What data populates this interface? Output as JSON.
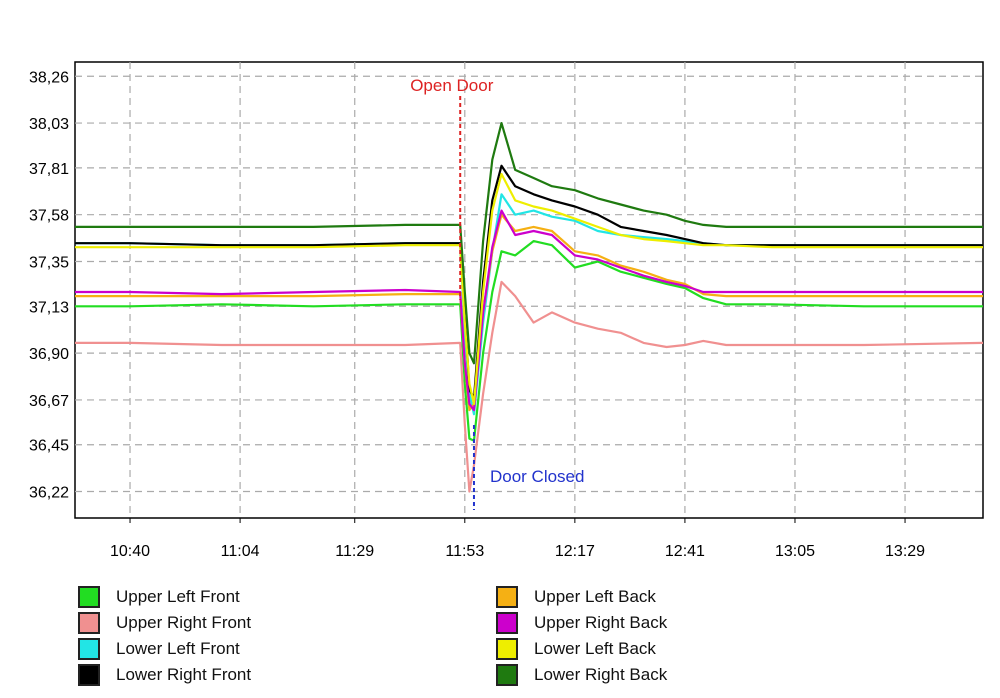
{
  "chart_data": {
    "type": "line",
    "title": "",
    "xlabel": "",
    "ylabel": "",
    "grid": true,
    "legend_position": "bottom",
    "x_ticks": [
      "10:40",
      "11:04",
      "11:29",
      "11:53",
      "12:17",
      "12:41",
      "13:05",
      "13:29"
    ],
    "y_ticks": [
      "38,26",
      "38,03",
      "37,81",
      "37,58",
      "37,35",
      "37,13",
      "36,90",
      "36,67",
      "36,45",
      "36,22"
    ],
    "y_tick_values": [
      38.26,
      38.03,
      37.81,
      37.58,
      37.35,
      37.13,
      36.9,
      36.67,
      36.45,
      36.22
    ],
    "xlim": [
      "10:28",
      "13:46"
    ],
    "ylim": [
      36.09,
      38.33
    ],
    "x": [
      "10:28",
      "10:40",
      "11:00",
      "11:20",
      "11:40",
      "11:52",
      "11:53",
      "11:54",
      "11:55",
      "11:57",
      "11:59",
      "12:01",
      "12:04",
      "12:08",
      "12:12",
      "12:17",
      "12:22",
      "12:27",
      "12:32",
      "12:37",
      "12:41",
      "12:45",
      "12:50",
      "13:00",
      "13:20",
      "13:46"
    ],
    "series": [
      {
        "name": "Upper Left Front",
        "color": "#22dd22",
        "values": [
          37.13,
          37.13,
          37.14,
          37.13,
          37.14,
          37.14,
          36.75,
          36.48,
          36.47,
          36.9,
          37.2,
          37.4,
          37.38,
          37.45,
          37.43,
          37.32,
          37.35,
          37.3,
          37.27,
          37.24,
          37.22,
          37.17,
          37.14,
          37.14,
          37.13,
          37.13
        ]
      },
      {
        "name": "Upper Right Front",
        "color": "#f09090",
        "values": [
          36.95,
          36.95,
          36.94,
          36.94,
          36.94,
          36.95,
          36.55,
          36.22,
          36.35,
          36.7,
          37.0,
          37.25,
          37.18,
          37.05,
          37.1,
          37.05,
          37.02,
          37.0,
          36.95,
          36.93,
          36.94,
          36.96,
          36.94,
          36.94,
          36.94,
          36.95
        ]
      },
      {
        "name": "Lower Left Front",
        "color": "#22e5e5",
        "values": [
          37.44,
          37.44,
          37.43,
          37.43,
          37.44,
          37.44,
          37.0,
          36.7,
          36.6,
          37.05,
          37.4,
          37.68,
          37.58,
          37.6,
          37.57,
          37.55,
          37.5,
          37.48,
          37.47,
          37.46,
          37.45,
          37.44,
          37.43,
          37.43,
          37.43,
          37.43
        ]
      },
      {
        "name": "Lower Right Front",
        "color": "#000000",
        "values": [
          37.44,
          37.44,
          37.43,
          37.43,
          37.44,
          37.44,
          37.1,
          36.72,
          36.68,
          37.25,
          37.65,
          37.82,
          37.72,
          37.68,
          37.65,
          37.62,
          37.58,
          37.52,
          37.5,
          37.48,
          37.46,
          37.44,
          37.43,
          37.43,
          37.43,
          37.43
        ]
      },
      {
        "name": "Upper Left Back",
        "color": "#f5b014",
        "values": [
          37.18,
          37.18,
          37.18,
          37.18,
          37.19,
          37.19,
          36.85,
          36.62,
          36.65,
          37.1,
          37.4,
          37.58,
          37.5,
          37.52,
          37.5,
          37.4,
          37.38,
          37.33,
          37.3,
          37.26,
          37.24,
          37.19,
          37.18,
          37.18,
          37.18,
          37.18
        ]
      },
      {
        "name": "Upper Right Back",
        "color": "#cc00cc",
        "values": [
          37.2,
          37.2,
          37.19,
          37.2,
          37.21,
          37.2,
          36.85,
          36.65,
          36.62,
          37.1,
          37.42,
          37.6,
          37.48,
          37.5,
          37.48,
          37.38,
          37.36,
          37.32,
          37.28,
          37.25,
          37.23,
          37.2,
          37.2,
          37.2,
          37.2,
          37.2
        ]
      },
      {
        "name": "Lower Left Back",
        "color": "#eeee00",
        "values": [
          37.42,
          37.42,
          37.42,
          37.42,
          37.43,
          37.43,
          37.05,
          36.75,
          36.65,
          37.2,
          37.6,
          37.78,
          37.65,
          37.62,
          37.6,
          37.56,
          37.52,
          37.48,
          37.46,
          37.45,
          37.44,
          37.43,
          37.43,
          37.42,
          37.42,
          37.42
        ]
      },
      {
        "name": "Lower Right Back",
        "color": "#1f7a10",
        "values": [
          37.52,
          37.52,
          37.52,
          37.52,
          37.53,
          37.53,
          37.2,
          36.9,
          36.85,
          37.45,
          37.85,
          38.03,
          37.8,
          37.76,
          37.72,
          37.7,
          37.66,
          37.63,
          37.6,
          37.58,
          37.55,
          37.53,
          37.52,
          37.52,
          37.52,
          37.52
        ]
      }
    ],
    "annotations": [
      {
        "text": "Open Door",
        "color": "#dd2222",
        "x": "11:52"
      },
      {
        "text": "Door Closed",
        "color": "#2233cc",
        "x": "11:55"
      }
    ]
  }
}
